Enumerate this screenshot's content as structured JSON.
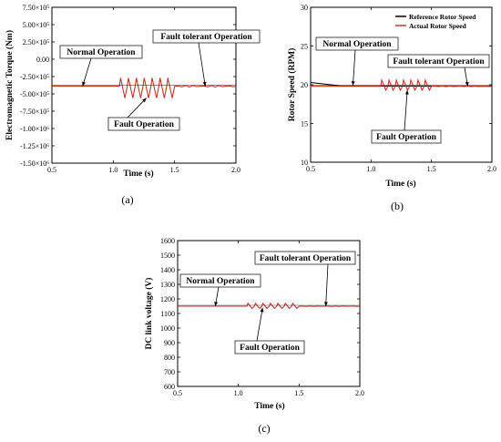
{
  "chart_data": [
    {
      "type": "line",
      "caption": "(a)",
      "xlabel": "Time (s)",
      "ylabel": "Electromagnetic Torque (Nm)",
      "xlim": [
        0.5,
        2.0
      ],
      "ylim": [
        -1500000,
        750000
      ],
      "xticks": [
        0.5,
        1.0,
        1.5,
        2.0
      ],
      "xtick_labels": [
        "0.5",
        "1.0",
        "1.5",
        "2.0"
      ],
      "yticks": [
        750000,
        500000,
        250000,
        0,
        -250000,
        -500000,
        -750000,
        -1000000,
        -1250000,
        -1500000
      ],
      "ytick_labels": [
        "7.50×10⁵",
        "5.00×10⁵",
        "2.50×10⁵",
        "0.00",
        "-2.50×10⁵",
        "-5.00×10⁵",
        "-7.50×10⁵",
        "-1.00×10⁶",
        "-1.25×10⁶",
        "-1.50×10⁶"
      ],
      "series": [
        {
          "color": "#c0392b",
          "baseline": -390000,
          "fault_start": 1.05,
          "fault_end": 1.5,
          "fault_low": -560000,
          "fault_high": -270000,
          "fault_cycles": 7
        }
      ],
      "annotations": [
        {
          "text": "Normal Operation",
          "target": [
            0.75,
            -390000
          ]
        },
        {
          "text": "Fault tolerant Operation",
          "target": [
            1.75,
            -390000
          ]
        },
        {
          "text": "Fault Operation",
          "target": [
            1.27,
            -560000
          ]
        }
      ]
    },
    {
      "type": "line",
      "caption": "(b)",
      "xlabel": "Time (s)",
      "ylabel": "Rotor Speed (RPM)",
      "xlim": [
        0.5,
        2.0
      ],
      "ylim": [
        10,
        30
      ],
      "xticks": [
        0.5,
        1.0,
        1.5,
        2.0
      ],
      "xtick_labels": [
        "0.5",
        "1.0",
        "1.5",
        "2.0"
      ],
      "yticks": [
        10,
        15,
        20,
        25,
        30
      ],
      "ytick_labels": [
        "10",
        "15",
        "20",
        "25",
        "30"
      ],
      "legend": {
        "position": "top-right",
        "entries": [
          "Reference Rotor Speed",
          "Actual Rotor Speed"
        ]
      },
      "series": [
        {
          "name": "Reference Rotor Speed",
          "color": "#000000",
          "start_value": 20.3,
          "value": 19.8
        },
        {
          "name": "Actual Rotor Speed",
          "color": "#c0392b",
          "baseline": 19.8,
          "fault_start": 1.08,
          "fault_end": 1.5,
          "fault_low": 19.3,
          "fault_high": 20.6,
          "fault_cycles": 7
        }
      ],
      "annotations": [
        {
          "text": "Normal Operation",
          "target": [
            0.85,
            19.9
          ]
        },
        {
          "text": "Fault tolerant Operation",
          "target": [
            1.8,
            19.8
          ]
        },
        {
          "text": "Fault Operation",
          "target": [
            1.3,
            19.3
          ]
        }
      ]
    },
    {
      "type": "line",
      "caption": "(c)",
      "xlabel": "Time (s)",
      "ylabel": "DC link voltage (V)",
      "xlim": [
        0.5,
        2.0
      ],
      "ylim": [
        600,
        1600
      ],
      "xticks": [
        0.5,
        1.0,
        1.5,
        2.0
      ],
      "xtick_labels": [
        "0.5",
        "1.0",
        "1.5",
        "2.0"
      ],
      "yticks": [
        600,
        700,
        800,
        900,
        1000,
        1100,
        1200,
        1300,
        1400,
        1500,
        1600
      ],
      "ytick_labels": [
        "600",
        "700",
        "800",
        "900",
        "1000",
        "1100",
        "1200",
        "1300",
        "1400",
        "1500",
        "1600"
      ],
      "series": [
        {
          "color": "#c0392b",
          "baseline": 1150,
          "fault_start": 1.07,
          "fault_end": 1.5,
          "fault_low": 1135,
          "fault_high": 1170,
          "fault_cycles": 7
        }
      ],
      "annotations": [
        {
          "text": "Normal Operation",
          "target": [
            0.81,
            1150
          ]
        },
        {
          "text": "Fault tolerant Operation",
          "target": [
            1.72,
            1150
          ]
        },
        {
          "text": "Fault Operation",
          "target": [
            1.2,
            1140
          ]
        }
      ]
    }
  ]
}
